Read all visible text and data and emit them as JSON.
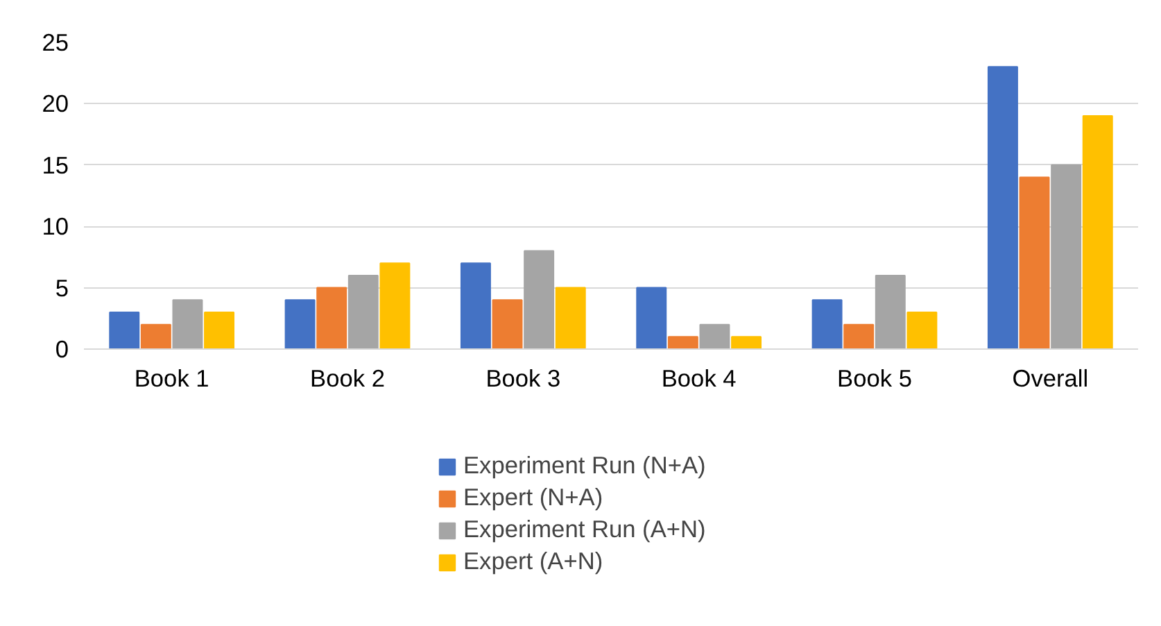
{
  "chart_data": {
    "type": "bar",
    "categories": [
      "Book 1",
      "Book 2",
      "Book 3",
      "Book 4",
      "Book 5",
      "Overall"
    ],
    "series": [
      {
        "name": "Experiment Run (N+A)",
        "color": "#4472c4",
        "values": [
          3,
          4,
          7,
          5,
          4,
          23
        ]
      },
      {
        "name": "Expert (N+A)",
        "color": "#ed7d31",
        "values": [
          2,
          5,
          4,
          1,
          2,
          14
        ]
      },
      {
        "name": "Experiment Run (A+N)",
        "color": "#a5a5a5",
        "values": [
          4,
          6,
          8,
          2,
          6,
          15
        ]
      },
      {
        "name": "Expert (A+N)",
        "color": "#ffc000",
        "values": [
          3,
          7,
          5,
          1,
          3,
          19
        ]
      }
    ],
    "ylim": [
      0,
      25
    ],
    "yticks": [
      0,
      5,
      10,
      15,
      20,
      25
    ],
    "grid": "y",
    "legend": "bottom"
  }
}
